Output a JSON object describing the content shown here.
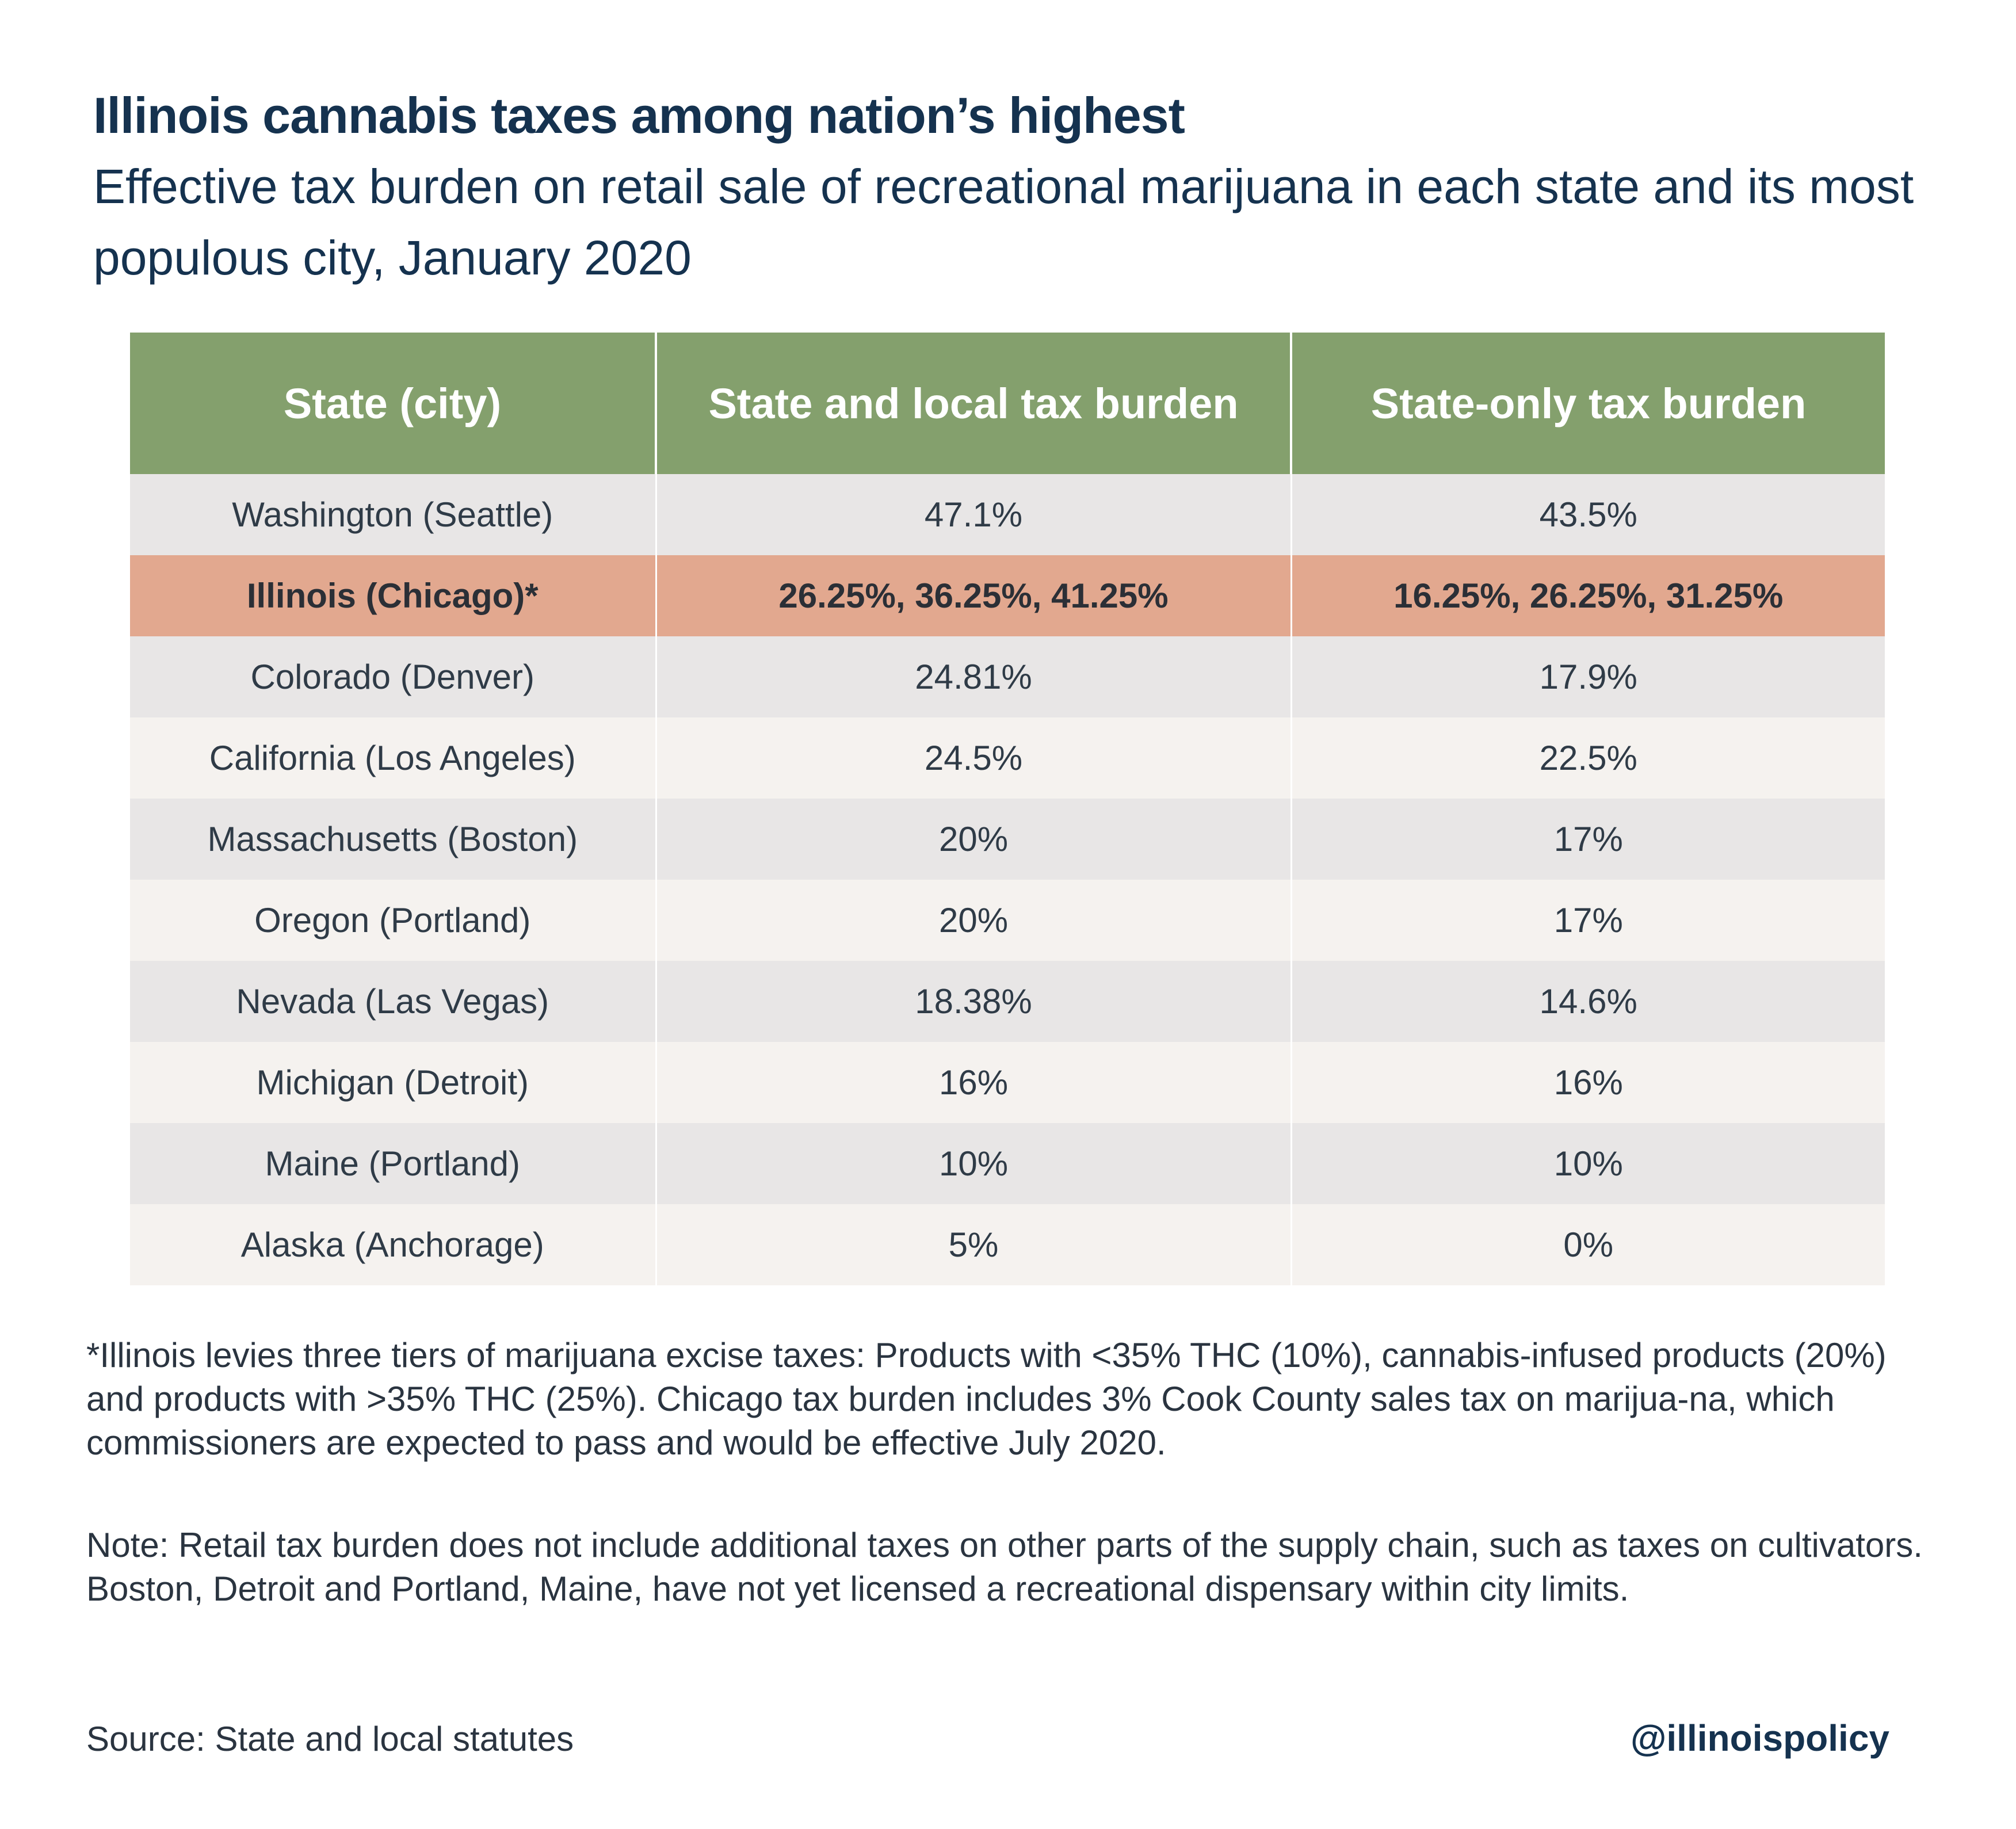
{
  "header": {
    "title": "Illinois cannabis taxes among nation’s highest",
    "subtitle": "Effective tax burden on retail sale of recreational marijuana in each state and its most populous city, January 2020"
  },
  "chart_data": {
    "type": "table",
    "columns": [
      "State (city)",
      "State and local tax burden",
      "State-only tax burden"
    ],
    "rows": [
      [
        "Washington (Seattle)",
        "47.1%",
        "43.5%"
      ],
      [
        "Illinois (Chicago)*",
        "26.25%, 36.25%, 41.25%",
        "16.25%, 26.25%, 31.25%"
      ],
      [
        "Colorado (Denver)",
        "24.81%",
        "17.9%"
      ],
      [
        "California (Los Angeles)",
        "24.5%",
        "22.5%"
      ],
      [
        "Massachusetts (Boston)",
        "20%",
        "17%"
      ],
      [
        "Oregon (Portland)",
        "20%",
        "17%"
      ],
      [
        "Nevada (Las Vegas)",
        "18.38%",
        "14.6%"
      ],
      [
        "Michigan (Detroit)",
        "16%",
        "16%"
      ],
      [
        "Maine (Portland)",
        "10%",
        "10%"
      ],
      [
        "Alaska (Anchorage)",
        "5%",
        "0%"
      ]
    ],
    "highlight_row": "Illinois (Chicago)*",
    "colors": {
      "header_bg": "#84a06d",
      "highlight_bg": "#e2a88f",
      "row_odd_bg": "#e8e6e6",
      "row_even_bg": "#f5f2ef"
    }
  },
  "footer": {
    "footnote": "*Illinois levies three tiers of marijuana excise taxes: Products with <35% THC (10%), cannabis-infused products (20%) and products with >35% THC (25%). Chicago tax burden includes 3% Cook County sales tax on marijua-na, which commissioners are expected to pass and would be effective July 2020.",
    "note": "Note: Retail tax burden does not include additional taxes on other parts of the supply chain, such as taxes on cultivators. Boston, Detroit and Portland, Maine, have not yet licensed a recreational dispensary within city limits.",
    "source": "Source: State and local statutes",
    "handle": "@illinoispolicy"
  }
}
